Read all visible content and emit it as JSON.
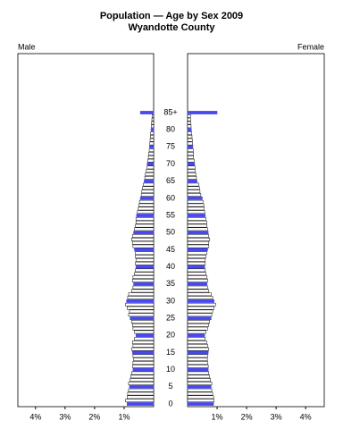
{
  "chart_data": {
    "type": "pyramid",
    "title": "Population — Age by Sex 2009",
    "subtitle": "Wyandotte County",
    "categories": [
      "0",
      null,
      null,
      null,
      null,
      "5",
      null,
      null,
      null,
      null,
      "10",
      null,
      null,
      null,
      null,
      "15",
      null,
      null,
      null,
      null,
      "20",
      null,
      null,
      null,
      null,
      "25",
      null,
      null,
      null,
      null,
      "30",
      null,
      null,
      null,
      null,
      "35",
      null,
      null,
      null,
      null,
      "40",
      null,
      null,
      null,
      null,
      "45",
      null,
      null,
      null,
      null,
      "50",
      null,
      null,
      null,
      null,
      "55",
      null,
      null,
      null,
      null,
      "60",
      null,
      null,
      null,
      null,
      "65",
      null,
      null,
      null,
      null,
      "70",
      null,
      null,
      null,
      null,
      "75",
      null,
      null,
      null,
      null,
      "80",
      null,
      null,
      null,
      null,
      "85+"
    ],
    "series": [
      {
        "name": "Male",
        "color": "#4848f0",
        "values": [
          0.9,
          0.95,
          0.9,
          0.88,
          0.85,
          0.82,
          0.85,
          0.8,
          0.78,
          0.75,
          0.7,
          0.72,
          0.7,
          0.68,
          0.7,
          0.72,
          0.75,
          0.7,
          0.72,
          0.65,
          0.6,
          0.65,
          0.7,
          0.72,
          0.75,
          0.8,
          0.85,
          0.82,
          0.9,
          0.95,
          0.92,
          0.88,
          0.85,
          0.75,
          0.7,
          0.68,
          0.72,
          0.7,
          0.65,
          0.62,
          0.6,
          0.62,
          0.6,
          0.62,
          0.62,
          0.65,
          0.7,
          0.72,
          0.75,
          0.72,
          0.68,
          0.65,
          0.62,
          0.6,
          0.6,
          0.58,
          0.55,
          0.52,
          0.5,
          0.48,
          0.45,
          0.42,
          0.4,
          0.38,
          0.35,
          0.32,
          0.3,
          0.28,
          0.25,
          0.22,
          0.22,
          0.2,
          0.18,
          0.17,
          0.15,
          0.14,
          0.13,
          0.12,
          0.11,
          0.1,
          0.09,
          0.08,
          0.07,
          0.06,
          0.05,
          0.45
        ]
      },
      {
        "name": "Female",
        "color": "#4848f0",
        "values": [
          0.88,
          0.9,
          0.88,
          0.85,
          0.82,
          0.8,
          0.82,
          0.78,
          0.75,
          0.72,
          0.7,
          0.7,
          0.68,
          0.67,
          0.68,
          0.7,
          0.72,
          0.68,
          0.65,
          0.6,
          0.58,
          0.62,
          0.68,
          0.72,
          0.75,
          0.8,
          0.82,
          0.85,
          0.9,
          0.95,
          0.9,
          0.85,
          0.8,
          0.72,
          0.68,
          0.66,
          0.68,
          0.66,
          0.62,
          0.6,
          0.58,
          0.6,
          0.6,
          0.62,
          0.65,
          0.68,
          0.72,
          0.72,
          0.75,
          0.72,
          0.7,
          0.68,
          0.65,
          0.65,
          0.62,
          0.6,
          0.58,
          0.56,
          0.55,
          0.52,
          0.5,
          0.45,
          0.42,
          0.4,
          0.38,
          0.32,
          0.3,
          0.28,
          0.26,
          0.25,
          0.24,
          0.22,
          0.2,
          0.2,
          0.19,
          0.18,
          0.17,
          0.16,
          0.15,
          0.14,
          0.13,
          0.12,
          0.11,
          0.1,
          0.1,
          1.0
        ]
      }
    ],
    "xlim": [
      0,
      4.6
    ],
    "xticks": [
      {
        "value": 1,
        "label": "1%"
      },
      {
        "value": 2,
        "label": "2%"
      },
      {
        "value": 3,
        "label": "3%"
      },
      {
        "value": 4,
        "label": "4%"
      }
    ]
  }
}
